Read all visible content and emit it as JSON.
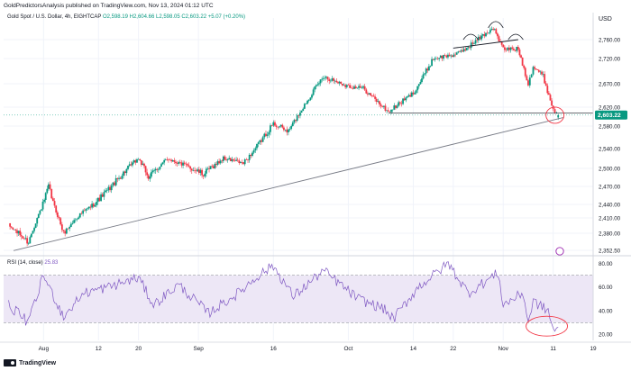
{
  "header": {
    "publisher": "GoldPredictorsAnalysis published on TradingView.com, Nov 13, 2024 01:12 UTC"
  },
  "legend": {
    "symbol": "Gold Spot / U.S. Dollar, 4h, EIGHTCAP",
    "ohlc": "O2,598.19  H2,604.66  L2,598.05  C2,603.22  +5.07 (+0.20%)"
  },
  "rsi_legend": {
    "label": "RSI (14, close)",
    "value": "25.83"
  },
  "price_axis": {
    "currency": "USD",
    "ticks": [
      "2,760.00",
      "2,720.00",
      "2,670.00",
      "2,620.00",
      "2,580.00",
      "2,540.00",
      "2,500.00",
      "2,470.00",
      "2,440.00",
      "2,410.00",
      "2,380.00",
      "2,352.50"
    ],
    "current_price_label": "2,603.22"
  },
  "rsi_axis": {
    "ticks": [
      "80.00",
      "60.00",
      "40.00",
      "20.00"
    ]
  },
  "time_axis": {
    "ticks": [
      "Aug",
      "12",
      "Sep",
      "16",
      "Oct",
      "14",
      "22",
      "Nov",
      "11",
      "19"
    ]
  },
  "footer": {
    "brand": "TradingView"
  },
  "colors": {
    "bull": "#089981",
    "bear": "#f23645",
    "rsi_line": "#7e57c2",
    "rsi_band": "#ede7f6",
    "price_tag": "#089981",
    "trendline": "#787b86",
    "annotation": "#f23645"
  },
  "chart_data": [
    {
      "type": "candlestick",
      "title": "Gold Spot / U.S. Dollar, 4h, EIGHTCAP",
      "ylabel": "USD",
      "ylim": [
        2345,
        2785
      ],
      "anchor_path": [
        {
          "x": "Jul 25",
          "y": 2395
        },
        {
          "x": "Jul 29",
          "y": 2365
        },
        {
          "x": "Aug 2",
          "y": 2470
        },
        {
          "x": "Aug 5",
          "y": 2380
        },
        {
          "x": "Aug 8",
          "y": 2415
        },
        {
          "x": "Aug 14",
          "y": 2465
        },
        {
          "x": "Aug 20",
          "y": 2520
        },
        {
          "x": "Aug 22",
          "y": 2485
        },
        {
          "x": "Aug 26",
          "y": 2520
        },
        {
          "x": "Sep 2",
          "y": 2490
        },
        {
          "x": "Sep 6",
          "y": 2520
        },
        {
          "x": "Sep 10",
          "y": 2510
        },
        {
          "x": "Sep 16",
          "y": 2585
        },
        {
          "x": "Sep 19",
          "y": 2570
        },
        {
          "x": "Sep 24",
          "y": 2655
        },
        {
          "x": "Sep 26",
          "y": 2685
        },
        {
          "x": "Oct 1",
          "y": 2665
        },
        {
          "x": "Oct 4",
          "y": 2660
        },
        {
          "x": "Oct 9",
          "y": 2610
        },
        {
          "x": "Oct 14",
          "y": 2650
        },
        {
          "x": "Oct 18",
          "y": 2720
        },
        {
          "x": "Oct 23",
          "y": 2730
        },
        {
          "x": "Oct 25",
          "y": 2745
        },
        {
          "x": "Oct 30",
          "y": 2785
        },
        {
          "x": "Nov 1",
          "y": 2740
        },
        {
          "x": "Nov 4",
          "y": 2740
        },
        {
          "x": "Nov 6",
          "y": 2670
        },
        {
          "x": "Nov 7",
          "y": 2705
        },
        {
          "x": "Nov 9",
          "y": 2685
        },
        {
          "x": "Nov 11",
          "y": 2615
        },
        {
          "x": "Nov 12",
          "y": 2603
        }
      ],
      "last": {
        "open": 2598.19,
        "high": 2604.66,
        "low": 2598.05,
        "close": 2603.22,
        "change": 5.07,
        "change_pct": 0.2
      },
      "trendlines": [
        {
          "name": "rising support",
          "from": {
            "x": "Jul 26",
            "y": 2352
          },
          "to": {
            "x": "Nov 13",
            "y": 2598
          }
        },
        {
          "name": "neckline",
          "from": {
            "x": "Oct 22",
            "y": 2742
          },
          "to": {
            "x": "Nov 4",
            "y": 2760
          }
        }
      ],
      "horizontal_lines": [
        2603.22,
        2608
      ]
    },
    {
      "type": "line",
      "title": "RSI (14, close)",
      "ylim": [
        15,
        85
      ],
      "bands": [
        30,
        70
      ],
      "last_value": 25.83,
      "anchor_path": [
        {
          "x": "Jul 25",
          "y": 45
        },
        {
          "x": "Jul 29",
          "y": 30
        },
        {
          "x": "Aug 1",
          "y": 70
        },
        {
          "x": "Aug 5",
          "y": 35
        },
        {
          "x": "Aug 9",
          "y": 55
        },
        {
          "x": "Aug 14",
          "y": 60
        },
        {
          "x": "Aug 20",
          "y": 68
        },
        {
          "x": "Aug 23",
          "y": 45
        },
        {
          "x": "Aug 28",
          "y": 62
        },
        {
          "x": "Sep 3",
          "y": 38
        },
        {
          "x": "Sep 9",
          "y": 55
        },
        {
          "x": "Sep 13",
          "y": 70
        },
        {
          "x": "Sep 16",
          "y": 78
        },
        {
          "x": "Sep 20",
          "y": 52
        },
        {
          "x": "Sep 26",
          "y": 74
        },
        {
          "x": "Oct 3",
          "y": 50
        },
        {
          "x": "Oct 8",
          "y": 42
        },
        {
          "x": "Oct 10",
          "y": 33
        },
        {
          "x": "Oct 15",
          "y": 60
        },
        {
          "x": "Oct 21",
          "y": 80
        },
        {
          "x": "Oct 25",
          "y": 55
        },
        {
          "x": "Oct 31",
          "y": 72
        },
        {
          "x": "Nov 1",
          "y": 45
        },
        {
          "x": "Nov 5",
          "y": 55
        },
        {
          "x": "Nov 6",
          "y": 30
        },
        {
          "x": "Nov 7",
          "y": 48
        },
        {
          "x": "Nov 10",
          "y": 40
        },
        {
          "x": "Nov 11",
          "y": 24
        },
        {
          "x": "Nov 12",
          "y": 26
        }
      ]
    }
  ]
}
